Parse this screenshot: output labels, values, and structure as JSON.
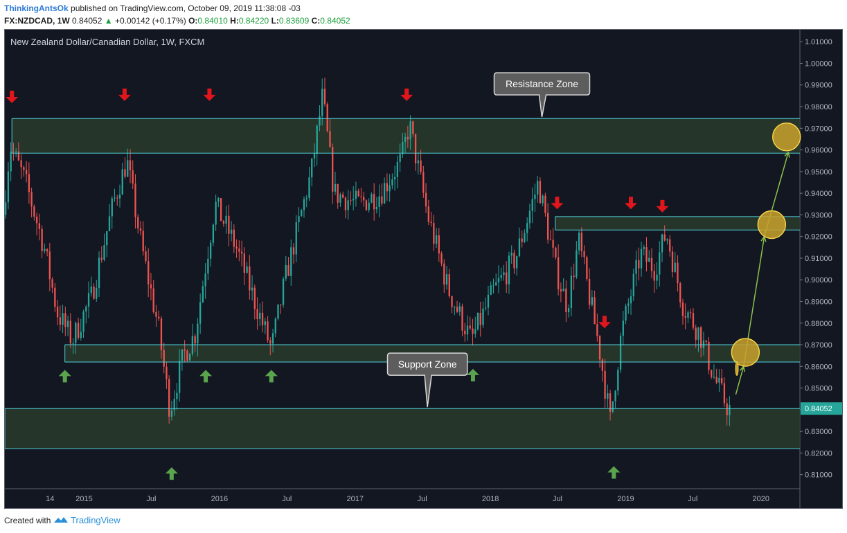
{
  "header": {
    "author": "ThinkingAntsOk",
    "published": "published on TradingView.com, October 09, 2019 11:38:08 -03",
    "symbol": "FX:NZDCAD, 1W",
    "last": "0.84052",
    "change_icon": "triangle-up-icon",
    "change": "+0.00142 (+0.17%)",
    "o_label": "O:",
    "o": "0.84010",
    "h_label": "H:",
    "h": "0.84220",
    "l_label": "L:",
    "l": "0.83609",
    "c_label": "C:",
    "c": "0.84052"
  },
  "footer": {
    "created_with": "Created with",
    "brand": "TradingView",
    "brand_icon": "tradingview-logo-icon"
  },
  "colors": {
    "background": "#131722",
    "bull": "#26a69a",
    "bear": "#ef5350",
    "zone_fill": "#2a3b2c",
    "zone_line": "#4fd1dd",
    "arrow_down": "#e0161c",
    "arrow_up": "#5aa44e",
    "target_circle": "#c9a12c",
    "projection": "#8bc34a"
  },
  "chart_data": {
    "type": "candlestick",
    "title": "New Zealand Dollar/Canadian Dollar, 1W, FXCM",
    "timeframe": "1W",
    "x_tick_labels": [
      "14",
      "2015",
      "Jul",
      "2016",
      "Jul",
      "2017",
      "Jul",
      "2018",
      "Jul",
      "2019",
      "Jul",
      "2020"
    ],
    "x_ticks": [
      {
        "label": "14",
        "date": "2014-10-01"
      },
      {
        "label": "2015",
        "date": "2015-01-01"
      },
      {
        "label": "Jul",
        "date": "2015-07-01"
      },
      {
        "label": "2016",
        "date": "2016-01-01"
      },
      {
        "label": "Jul",
        "date": "2016-07-01"
      },
      {
        "label": "2017",
        "date": "2017-01-01"
      },
      {
        "label": "Jul",
        "date": "2017-07-01"
      },
      {
        "label": "2018",
        "date": "2018-01-01"
      },
      {
        "label": "Jul",
        "date": "2018-07-01"
      },
      {
        "label": "2019",
        "date": "2019-01-01"
      },
      {
        "label": "Jul",
        "date": "2019-07-01"
      },
      {
        "label": "2020",
        "date": "2020-01-01"
      }
    ],
    "y_ticks": [
      "0.81000",
      "0.82000",
      "0.83000",
      "0.84000",
      "0.85000",
      "0.86000",
      "0.87000",
      "0.88000",
      "0.89000",
      "0.90000",
      "0.91000",
      "0.92000",
      "0.93000",
      "0.94000",
      "0.95000",
      "0.96000",
      "0.97000",
      "0.98000",
      "0.99000",
      "1.00000",
      "1.01000"
    ],
    "ylim": [
      0.8035,
      1.0155
    ],
    "x_range": [
      "2014-06-01",
      "2020-04-15"
    ],
    "last_price": {
      "label": "0.84052",
      "value": 0.84052
    },
    "price_path": [
      {
        "date": "2014-06-01",
        "price": 0.93
      },
      {
        "date": "2014-06-20",
        "price": 0.962
      },
      {
        "date": "2014-08-01",
        "price": 0.945
      },
      {
        "date": "2014-09-20",
        "price": 0.915
      },
      {
        "date": "2014-10-25",
        "price": 0.885
      },
      {
        "date": "2014-12-05",
        "price": 0.872
      },
      {
        "date": "2015-01-25",
        "price": 0.892
      },
      {
        "date": "2015-03-25",
        "price": 0.935
      },
      {
        "date": "2015-05-01",
        "price": 0.955
      },
      {
        "date": "2015-06-10",
        "price": 0.915
      },
      {
        "date": "2015-07-25",
        "price": 0.878
      },
      {
        "date": "2015-08-25",
        "price": 0.84
      },
      {
        "date": "2015-10-01",
        "price": 0.865
      },
      {
        "date": "2015-11-01",
        "price": 0.875
      },
      {
        "date": "2015-12-25",
        "price": 0.935
      },
      {
        "date": "2016-02-20",
        "price": 0.915
      },
      {
        "date": "2016-04-10",
        "price": 0.89
      },
      {
        "date": "2016-05-25",
        "price": 0.868
      },
      {
        "date": "2016-07-01",
        "price": 0.9
      },
      {
        "date": "2016-09-10",
        "price": 0.95
      },
      {
        "date": "2016-10-10",
        "price": 0.985
      },
      {
        "date": "2016-11-10",
        "price": 0.94
      },
      {
        "date": "2017-01-15",
        "price": 0.935
      },
      {
        "date": "2017-03-15",
        "price": 0.94
      },
      {
        "date": "2017-05-10",
        "price": 0.955
      },
      {
        "date": "2017-06-01",
        "price": 0.972
      },
      {
        "date": "2017-07-20",
        "price": 0.93
      },
      {
        "date": "2017-09-15",
        "price": 0.895
      },
      {
        "date": "2017-11-15",
        "price": 0.872
      },
      {
        "date": "2018-01-15",
        "price": 0.895
      },
      {
        "date": "2018-03-15",
        "price": 0.91
      },
      {
        "date": "2018-05-15",
        "price": 0.945
      },
      {
        "date": "2018-07-01",
        "price": 0.905
      },
      {
        "date": "2018-08-01",
        "price": 0.888
      },
      {
        "date": "2018-09-01",
        "price": 0.918
      },
      {
        "date": "2018-10-25",
        "price": 0.87
      },
      {
        "date": "2018-11-25",
        "price": 0.835
      },
      {
        "date": "2018-12-25",
        "price": 0.875
      },
      {
        "date": "2019-02-15",
        "price": 0.912
      },
      {
        "date": "2019-03-25",
        "price": 0.905
      },
      {
        "date": "2019-04-25",
        "price": 0.922
      },
      {
        "date": "2019-06-10",
        "price": 0.888
      },
      {
        "date": "2019-07-25",
        "price": 0.875
      },
      {
        "date": "2019-09-01",
        "price": 0.855
      },
      {
        "date": "2019-10-09",
        "price": 0.8405
      }
    ],
    "zones": [
      {
        "name": "resistance",
        "from": 0.9585,
        "to": 0.9745,
        "start": "2014-06-20",
        "end": "2020-04-15"
      },
      {
        "name": "mid-resistance",
        "from": 0.923,
        "to": 0.9292,
        "start": "2018-06-25",
        "end": "2020-04-15"
      },
      {
        "name": "mid-support",
        "from": 0.862,
        "to": 0.87,
        "start": "2014-11-10",
        "end": "2020-04-15"
      },
      {
        "name": "support",
        "from": 0.822,
        "to": 0.8405,
        "start": "2014-06-01",
        "end": "2020-04-15"
      }
    ],
    "annotations": [
      {
        "text": "Resistance Zone",
        "date": "2018-05-20",
        "price": 0.9905,
        "pointer_price": 0.9752
      },
      {
        "text": "Support Zone",
        "date": "2017-07-15",
        "price": 0.861,
        "pointer_price": 0.8412
      }
    ],
    "down_arrows": [
      {
        "date": "2014-06-20",
        "price": 0.9845
      },
      {
        "date": "2015-04-20",
        "price": 0.9855
      },
      {
        "date": "2015-12-05",
        "price": 0.9855
      },
      {
        "date": "2017-05-20",
        "price": 0.9855
      },
      {
        "date": "2018-06-30",
        "price": 0.9355
      },
      {
        "date": "2018-11-05",
        "price": 0.8805
      },
      {
        "date": "2019-01-15",
        "price": 0.9355
      },
      {
        "date": "2019-04-10",
        "price": 0.934
      }
    ],
    "up_arrows": [
      {
        "date": "2014-11-10",
        "price": 0.8555
      },
      {
        "date": "2015-08-25",
        "price": 0.8105
      },
      {
        "date": "2015-11-25",
        "price": 0.8555
      },
      {
        "date": "2016-05-20",
        "price": 0.8555
      },
      {
        "date": "2017-11-15",
        "price": 0.856
      },
      {
        "date": "2018-11-30",
        "price": 0.811
      }
    ],
    "targets": [
      {
        "date": "2019-11-20",
        "price": 0.8665
      },
      {
        "date": "2020-01-30",
        "price": 0.9255
      },
      {
        "date": "2020-03-10",
        "price": 0.966
      }
    ],
    "small_target": {
      "date": "2019-10-28",
      "price": 0.859
    },
    "projection": [
      {
        "date": "2019-10-25",
        "price": 0.847
      },
      {
        "date": "2019-11-15",
        "price": 0.86
      },
      {
        "date": "2020-01-10",
        "price": 0.92
      },
      {
        "date": "2020-03-15",
        "price": 0.959
      }
    ]
  }
}
